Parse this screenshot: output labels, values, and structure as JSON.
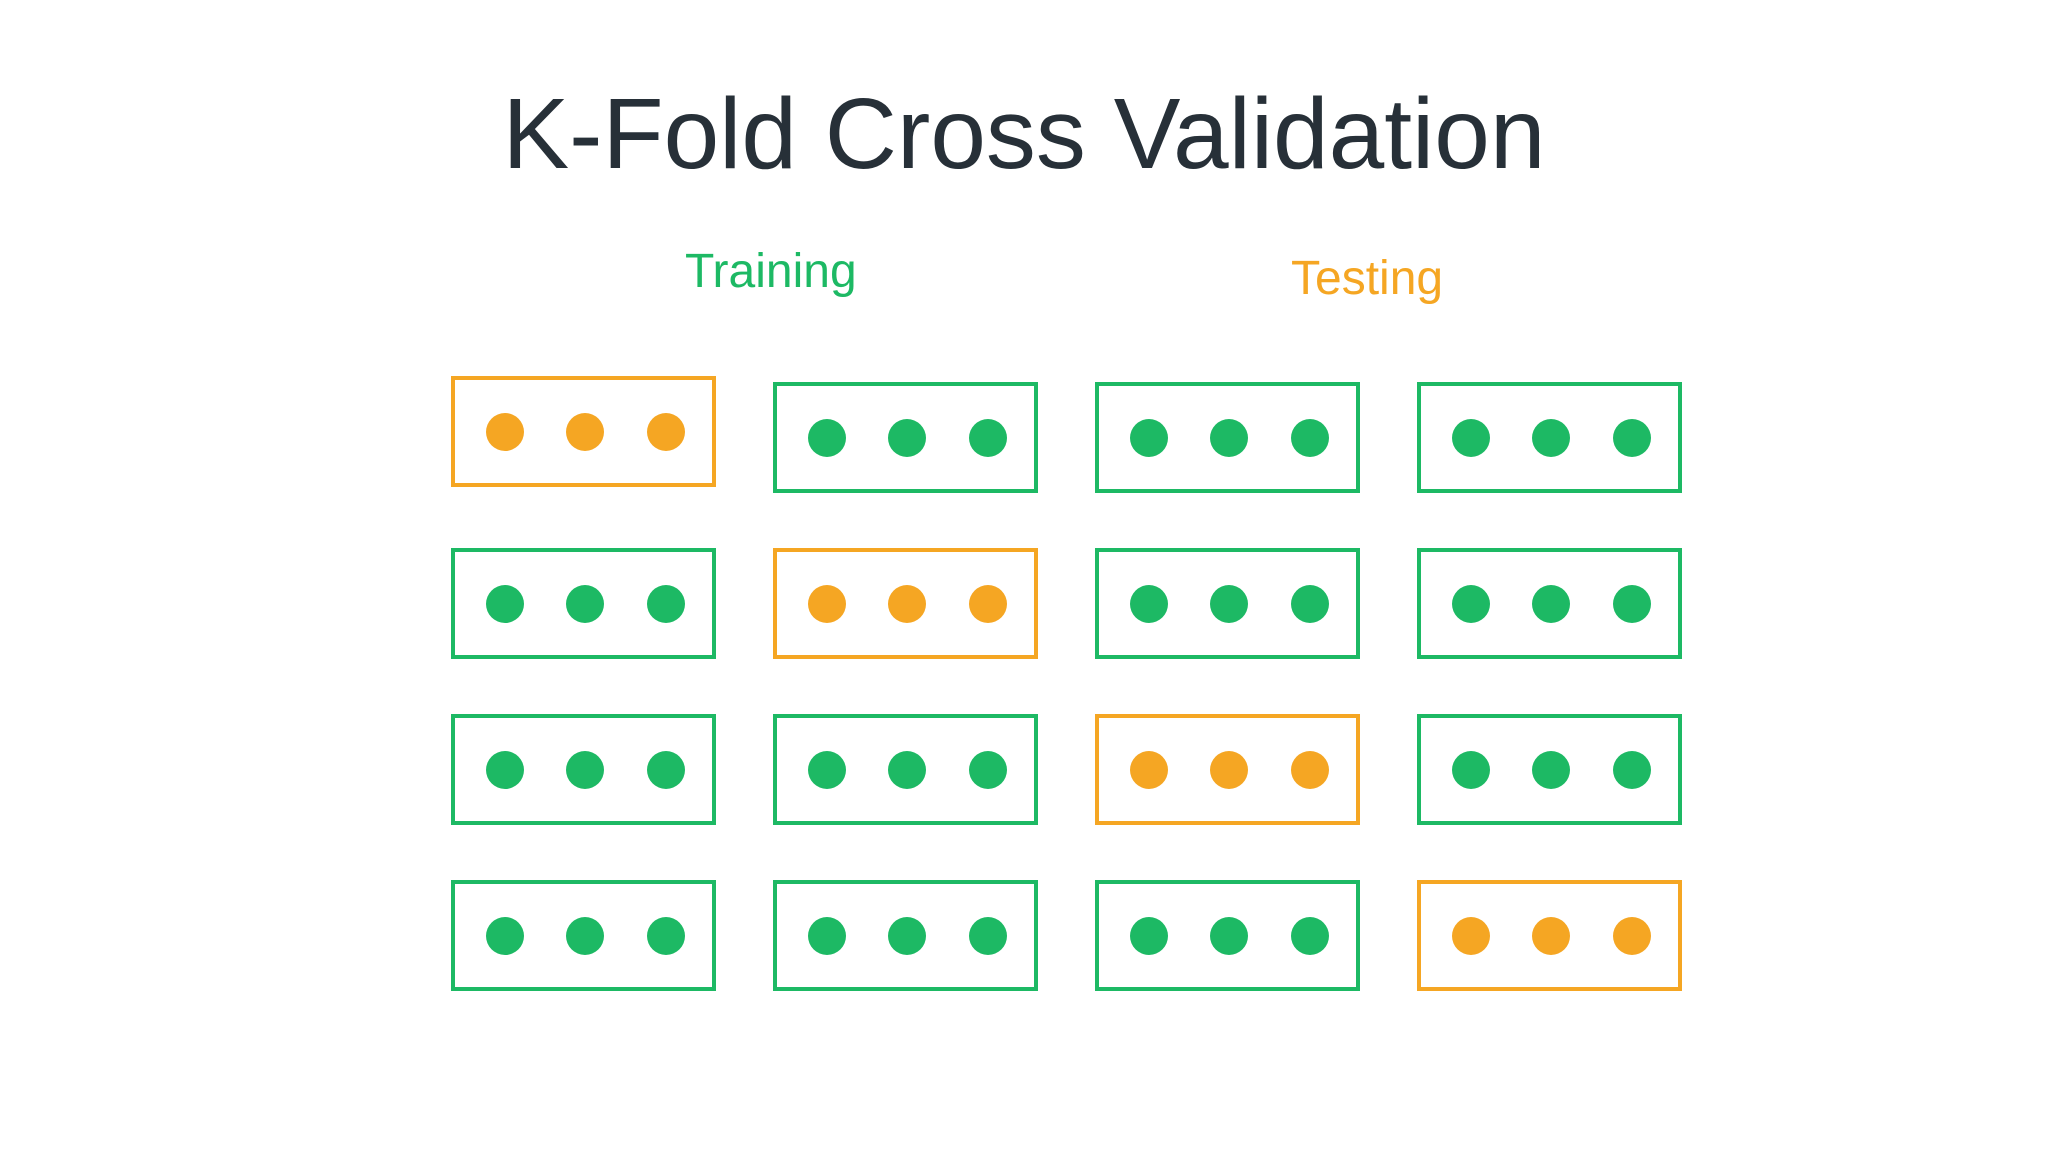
{
  "title": "K-Fold Cross Validation",
  "legend": {
    "training": {
      "label": "Training",
      "color": "#1DB964"
    },
    "testing": {
      "label": "Testing",
      "color": "#F5A623"
    }
  },
  "folds": {
    "rows": 4,
    "columns": 4,
    "dots_per_fold": 3,
    "test_fold_index_per_row": [
      0,
      1,
      2,
      3
    ]
  }
}
